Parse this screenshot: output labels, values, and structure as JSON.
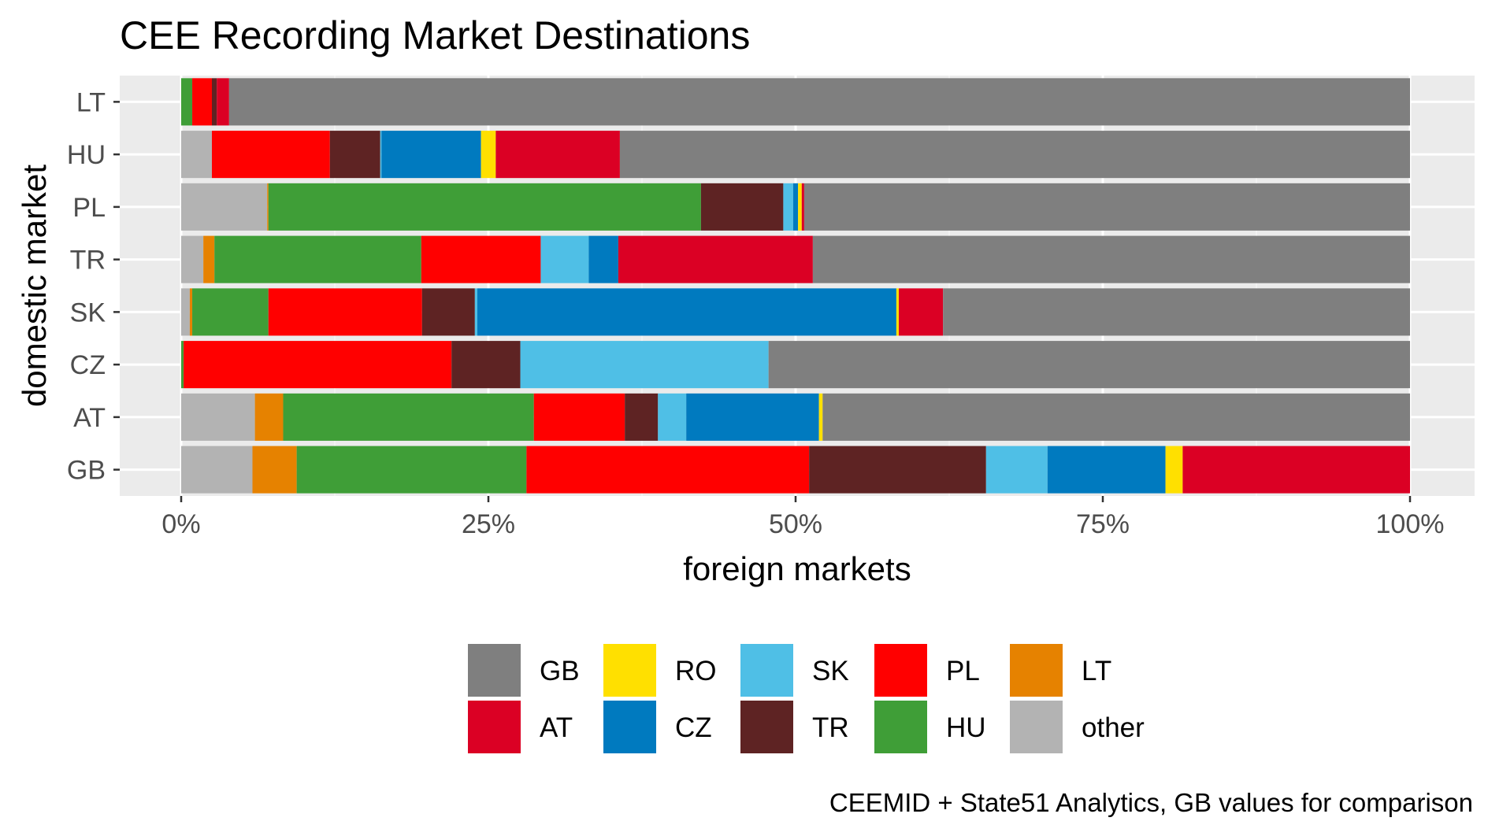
{
  "chart_data": {
    "type": "bar",
    "orientation": "horizontal",
    "stacked": "percent",
    "title": "CEE Recording Market Destinations",
    "xlabel": "foreign markets",
    "ylabel": "domestic market",
    "caption": "CEEMID + State51 Analytics, GB values for comparison",
    "xlim": [
      0,
      100
    ],
    "x_ticks": [
      "0%",
      "25%",
      "50%",
      "75%",
      "100%"
    ],
    "grid": true,
    "legend_position": "bottom",
    "categories": [
      "LT",
      "HU",
      "PL",
      "TR",
      "SK",
      "CZ",
      "AT",
      "GB"
    ],
    "series": [
      {
        "name": "other",
        "color": "#b3b3b3",
        "values": [
          0,
          2.5,
          7.0,
          1.8,
          0.7,
          0,
          6.0,
          5.8
        ]
      },
      {
        "name": "LT",
        "color": "#e68200",
        "values": [
          0,
          0,
          0.1,
          0.9,
          0.2,
          0,
          2.3,
          3.6
        ]
      },
      {
        "name": "HU",
        "color": "#3f9e37",
        "values": [
          0.9,
          0,
          35.2,
          16.8,
          6.2,
          0.2,
          20.4,
          18.7
        ]
      },
      {
        "name": "PL",
        "color": "#ff0000",
        "values": [
          1.6,
          9.6,
          0,
          9.7,
          12.5,
          21.8,
          7.4,
          23.0
        ]
      },
      {
        "name": "TR",
        "color": "#5e2323",
        "values": [
          0.4,
          4.1,
          6.7,
          0,
          4.3,
          5.6,
          2.7,
          14.4
        ]
      },
      {
        "name": "SK",
        "color": "#4fbfe6",
        "values": [
          0,
          0.1,
          0.8,
          3.9,
          0.2,
          20.2,
          2.3,
          5.0
        ]
      },
      {
        "name": "CZ",
        "color": "#007abf",
        "values": [
          0,
          8.1,
          0.4,
          2.4,
          34.1,
          0,
          10.8,
          9.6
        ]
      },
      {
        "name": "RO",
        "color": "#ffe000",
        "values": [
          0,
          1.2,
          0.3,
          0,
          0.2,
          0,
          0.3,
          1.4
        ]
      },
      {
        "name": "AT",
        "color": "#db0024",
        "values": [
          1.0,
          10.1,
          0.2,
          15.8,
          3.6,
          0,
          0,
          18.5
        ]
      },
      {
        "name": "GB",
        "color": "#7f7f7f",
        "values": [
          96.1,
          64.3,
          49.3,
          48.5,
          38.0,
          52.2,
          47.8,
          0
        ]
      }
    ],
    "legend_order": [
      "GB",
      "RO",
      "SK",
      "PL",
      "LT",
      "AT",
      "CZ",
      "TR",
      "HU",
      "other"
    ]
  }
}
